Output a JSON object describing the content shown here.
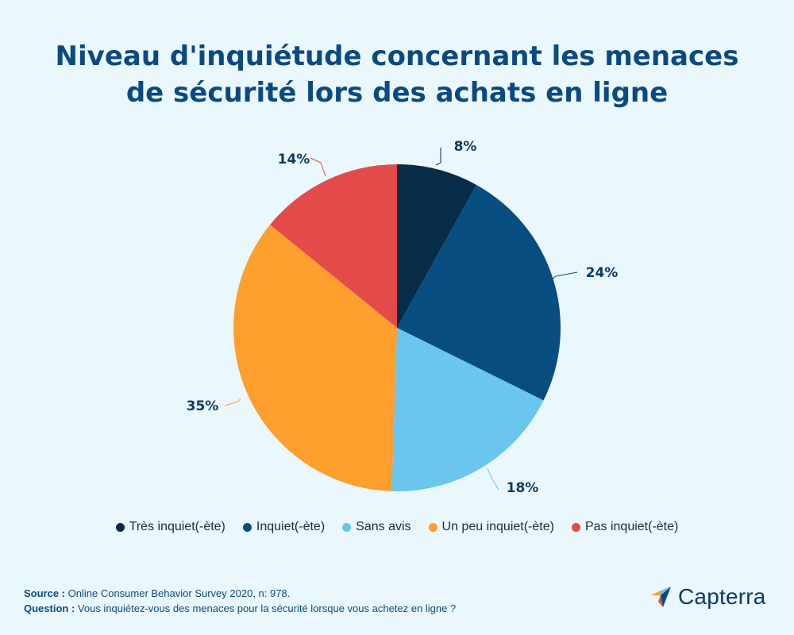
{
  "title_line1": "Niveau d'inquiétude concernant les menaces",
  "title_line2": "de sécurité lors des achats en ligne",
  "chart_data": {
    "type": "pie",
    "title": "Niveau d'inquiétude concernant les menaces de sécurité lors des achats en ligne",
    "labels": [
      "Très inquiet(-ète)",
      "Inquiet(-ète)",
      "Sans avis",
      "Un peu inquiet(-ète)",
      "Pas inquiet(-ète)"
    ],
    "values": [
      8,
      24,
      18,
      35,
      14
    ],
    "value_labels": [
      "8%",
      "24%",
      "18%",
      "35%",
      "14%"
    ],
    "colors": [
      "#072c47",
      "#074d80",
      "#6ac6ee",
      "#ff9f2d",
      "#e54a4a"
    ],
    "legend_position": "bottom",
    "start": "top",
    "direction": "clockwise"
  },
  "legend": [
    {
      "label": "Très inquiet(-ète)",
      "color": "#072c47"
    },
    {
      "label": "Inquiet(-ète)",
      "color": "#074d80"
    },
    {
      "label": "Sans avis",
      "color": "#6ac6ee"
    },
    {
      "label": "Un peu inquiet(-ète)",
      "color": "#ff9f2d"
    },
    {
      "label": "Pas inquiet(-ète)",
      "color": "#e54a4a"
    }
  ],
  "footer": {
    "source_label": "Source :",
    "source_text": "Online Consumer Behavior Survey 2020, n: 978.",
    "question_label": "Question :",
    "question_text": "Vous inquiétez-vous des menaces pour la sécurité lorsque vous achetez en ligne ?"
  },
  "logo": {
    "text": "Capterra",
    "colors": [
      "#ff9d28",
      "#68c5ed",
      "#044d80",
      "#e54a4a"
    ]
  }
}
